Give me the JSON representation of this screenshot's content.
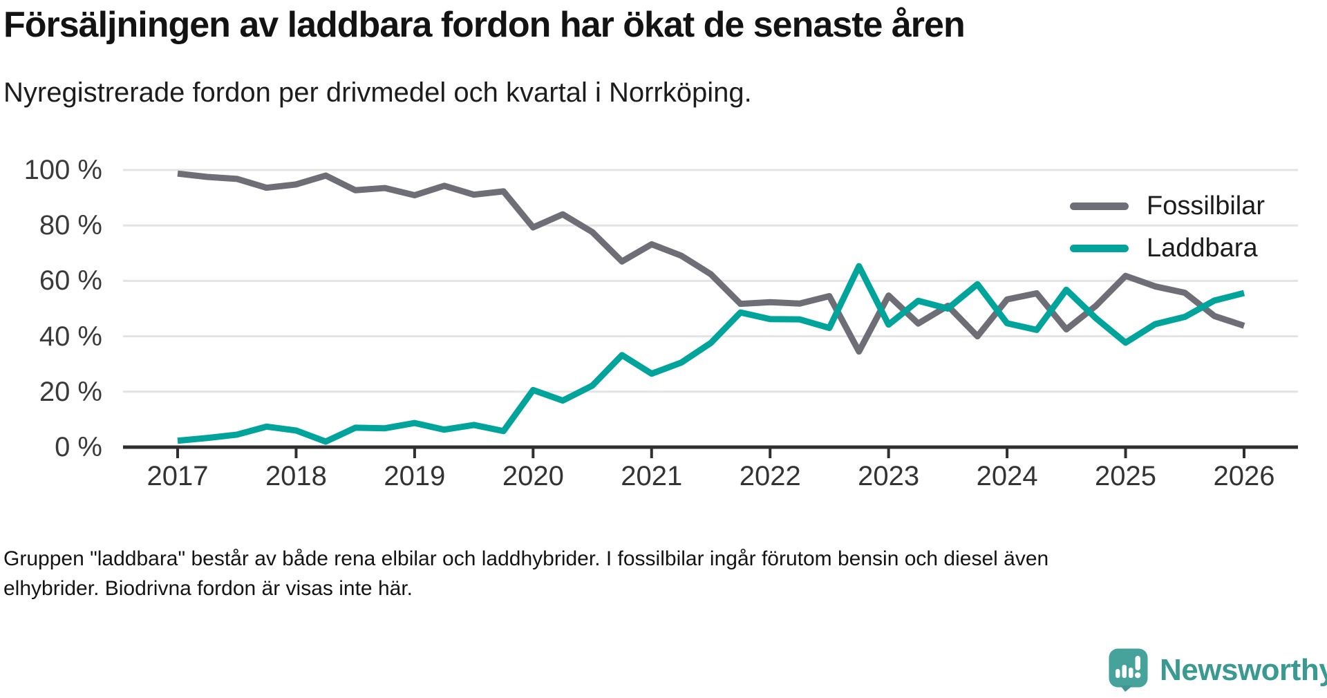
{
  "header": {
    "title": "Försäljningen av laddbara fordon har ökat de senaste åren",
    "subtitle": "Nyregistrerade fordon per drivmedel och kvartal i Norrköping."
  },
  "footer": {
    "line1": "Gruppen \"laddbara\" består av både rena elbilar och laddhybrider. I fossilbilar ingår förutom bensin och diesel även",
    "line2": "elhybrider. Biodrivna fordon är visas inte här."
  },
  "branding": {
    "name": "Newsworthy",
    "bubble_color": "#46a39b",
    "text_color": "#3a9a92"
  },
  "chart_data": {
    "type": "line",
    "title": "Försäljningen av laddbara fordon har ökat de senaste åren",
    "subtitle": "Nyregistrerade fordon per drivmedel och kvartal i Norrköping.",
    "unit": "%",
    "ylim": [
      0,
      100
    ],
    "grid": true,
    "legend_position": "top-right",
    "y_tick_labels": [
      "100 %",
      "80 %",
      "60 %",
      "40 %",
      "20 %",
      "0 %"
    ],
    "x_tick_labels": [
      "2017",
      "2018",
      "2019",
      "2020",
      "2021",
      "2022",
      "2023",
      "2024",
      "2025",
      "2026"
    ],
    "x": [
      "2017 Q1",
      "2017 Q2",
      "2017 Q3",
      "2017 Q4",
      "2018 Q1",
      "2018 Q2",
      "2018 Q3",
      "2018 Q4",
      "2019 Q1",
      "2019 Q2",
      "2019 Q3",
      "2019 Q4",
      "2020 Q1",
      "2020 Q2",
      "2020 Q3",
      "2020 Q4",
      "2021 Q1",
      "2021 Q2",
      "2021 Q3",
      "2021 Q4",
      "2022 Q1",
      "2022 Q2",
      "2022 Q3",
      "2022 Q4",
      "2023 Q1",
      "2023 Q2",
      "2023 Q3",
      "2023 Q4",
      "2024 Q1",
      "2024 Q2",
      "2024 Q3",
      "2024 Q4",
      "2025 Q1",
      "2025 Q2",
      "2025 Q3",
      "2025 Q4",
      "2026 Q1"
    ],
    "series": [
      {
        "name": "Fossilbilar",
        "color": "#6e6e76",
        "values": [
          98.7,
          97.5,
          96.8,
          93.6,
          94.8,
          98.0,
          92.7,
          93.5,
          90.9,
          94.3,
          91.1,
          92.3,
          79.3,
          84.0,
          77.6,
          67.0,
          73.2,
          69.1,
          62.4,
          51.7,
          52.3,
          51.8,
          54.5,
          34.5,
          54.7,
          44.6,
          51.0,
          40.0,
          53.3,
          55.5,
          42.5,
          51.0,
          61.8,
          58.0,
          55.7,
          47.3,
          43.8
        ]
      },
      {
        "name": "Laddbara",
        "color": "#00a49b",
        "values": [
          2.3,
          3.3,
          4.5,
          7.4,
          6.0,
          2.0,
          7.0,
          6.8,
          8.7,
          6.3,
          8.0,
          5.8,
          20.6,
          16.8,
          22.2,
          33.2,
          26.5,
          30.5,
          37.6,
          48.6,
          46.2,
          46.1,
          43.0,
          65.3,
          44.2,
          52.8,
          50.0,
          58.8,
          44.7,
          42.3,
          56.8,
          46.5,
          37.7,
          44.4,
          47.0,
          52.9,
          55.6
        ]
      }
    ],
    "style": {
      "gridline_color": "#e3e3e3",
      "axis_color": "#2f2f2f",
      "label_color": "#3a3a3a"
    }
  }
}
